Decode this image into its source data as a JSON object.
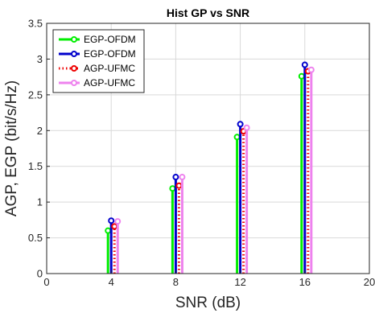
{
  "chart_data": {
    "type": "stem",
    "title": "Hist GP vs SNR",
    "xlabel": "SNR (dB)",
    "ylabel": "AGP, EGP (bit/s/Hz)",
    "xlim": [
      0,
      20
    ],
    "ylim": [
      0,
      3.5
    ],
    "xticks": [
      0,
      4,
      8,
      12,
      16,
      20
    ],
    "yticks": [
      0,
      0.5,
      1,
      1.5,
      2,
      2.5,
      3,
      3.5
    ],
    "grid": true,
    "legend_position": "top-left",
    "series": [
      {
        "name": "EGP-OFDM",
        "color": "#00ee00",
        "line": "solid",
        "x": [
          3.8,
          7.8,
          11.8,
          15.8
        ],
        "values": [
          0.6,
          1.19,
          1.91,
          2.76
        ]
      },
      {
        "name": "EGP-OFDM",
        "color": "#0000cc",
        "line": "solid",
        "x": [
          4.0,
          8.0,
          12.0,
          16.0
        ],
        "values": [
          0.74,
          1.35,
          2.09,
          2.92
        ]
      },
      {
        "name": "AGP-UFMC",
        "color": "#ee0000",
        "line": "dotted",
        "x": [
          4.2,
          8.2,
          12.2,
          16.2
        ],
        "values": [
          0.66,
          1.23,
          1.99,
          2.83
        ]
      },
      {
        "name": "AGP-UFMC",
        "color": "#ee82ee",
        "line": "solid",
        "x": [
          4.4,
          8.4,
          12.4,
          16.4
        ],
        "values": [
          0.73,
          1.35,
          2.04,
          2.85
        ]
      }
    ]
  }
}
